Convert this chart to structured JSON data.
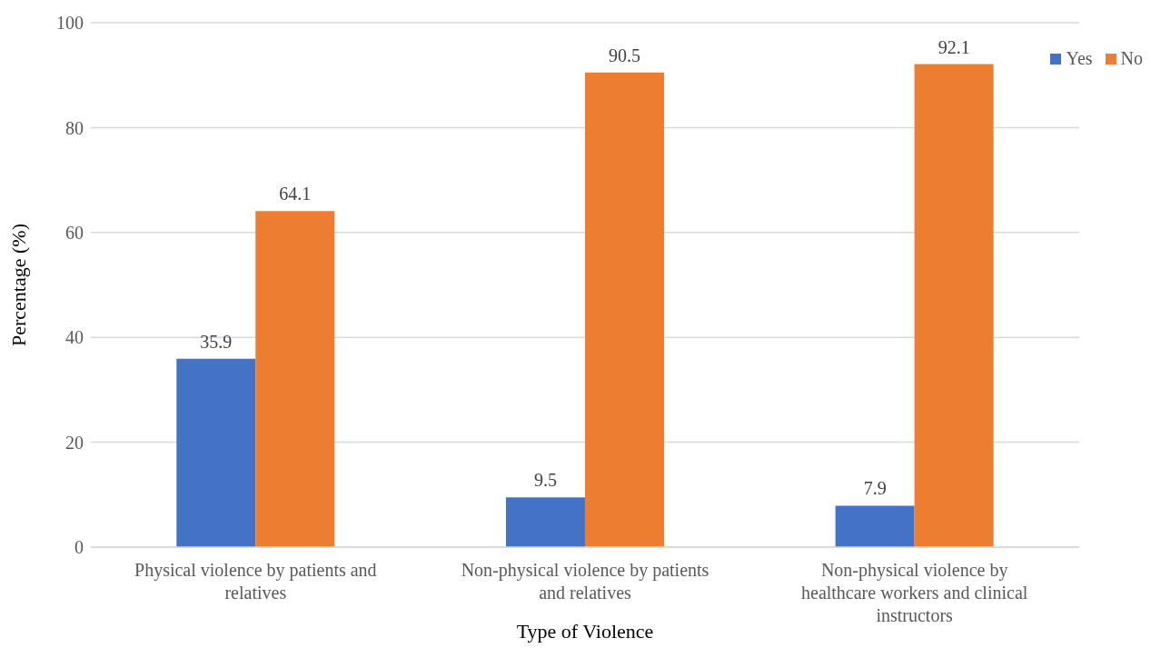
{
  "chart_data": {
    "type": "bar",
    "xlabel": "Type of Violence",
    "ylabel": "Percentage (%)",
    "categories": [
      "Physical violence by patients and relatives",
      "Non-physical violence by patients and relatives",
      "Non-physical violence by healthcare workers and clinical instructors"
    ],
    "series": [
      {
        "name": "Yes",
        "color": "#4472c4",
        "values": [
          35.9,
          9.5,
          7.9
        ]
      },
      {
        "name": "No",
        "color": "#ed7d31",
        "values": [
          64.1,
          90.5,
          92.1
        ]
      }
    ],
    "ylim": [
      0,
      100
    ],
    "yticks": [
      0,
      20,
      40,
      60,
      80,
      100
    ],
    "grid": "y",
    "legend": "top right",
    "data_labels": true
  }
}
